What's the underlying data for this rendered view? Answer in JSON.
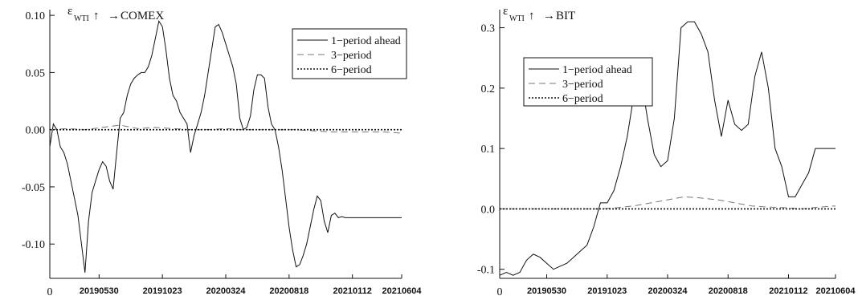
{
  "chart_data": [
    {
      "type": "line",
      "title_main": "ε",
      "title_sub": "WTI",
      "title_target": "COMEX",
      "ylim": [
        -0.13,
        0.105
      ],
      "yticks": [
        -0.1,
        -0.05,
        0.0,
        0.05,
        0.1
      ],
      "ytick_labels": [
        "-0.10",
        "-0.05",
        "0.00",
        "0.05",
        "0.10"
      ],
      "xlim": [
        0,
        100
      ],
      "x_zero_label": "0",
      "xticks": [
        {
          "x": 14,
          "label": "20190530"
        },
        {
          "x": 32,
          "label": "20191023"
        },
        {
          "x": 50,
          "label": "20200324"
        },
        {
          "x": 68,
          "label": "20200818"
        },
        {
          "x": 86,
          "label": "20210112"
        },
        {
          "x": 100,
          "label": "20210604"
        }
      ],
      "legend": [
        "1−period ahead",
        "3−period",
        "6−period"
      ],
      "series": [
        {
          "name": "1−period ahead",
          "style": "solid",
          "x": [
            0,
            1,
            2,
            3,
            4,
            5,
            6,
            7,
            8,
            9,
            10,
            11,
            12,
            13,
            14,
            15,
            16,
            17,
            18,
            19,
            20,
            21,
            22,
            23,
            24,
            25,
            26,
            27,
            28,
            29,
            30,
            31,
            32,
            33,
            34,
            35,
            36,
            37,
            38,
            39,
            40,
            41,
            42,
            43,
            44,
            45,
            46,
            47,
            48,
            49,
            50,
            51,
            52,
            53,
            54,
            55,
            56,
            57,
            58,
            59,
            60,
            61,
            62,
            63,
            64,
            65,
            66,
            67,
            68,
            69,
            70,
            71,
            72,
            73,
            74,
            75,
            76,
            77,
            78,
            79,
            80,
            81,
            82,
            83,
            84,
            85,
            86,
            87,
            88,
            89,
            90,
            91,
            92,
            93,
            94,
            95,
            96,
            97,
            98,
            99,
            100
          ],
          "y": [
            -0.015,
            0.005,
            0.0,
            -0.015,
            -0.02,
            -0.03,
            -0.045,
            -0.06,
            -0.075,
            -0.1,
            -0.125,
            -0.08,
            -0.055,
            -0.045,
            -0.035,
            -0.028,
            -0.032,
            -0.045,
            -0.052,
            -0.02,
            0.01,
            0.015,
            0.03,
            0.04,
            0.045,
            0.048,
            0.05,
            0.05,
            0.055,
            0.065,
            0.08,
            0.095,
            0.09,
            0.07,
            0.045,
            0.03,
            0.025,
            0.015,
            0.01,
            0.005,
            -0.02,
            -0.005,
            0.005,
            0.015,
            0.03,
            0.05,
            0.07,
            0.09,
            0.092,
            0.085,
            0.075,
            0.065,
            0.055,
            0.04,
            0.01,
            0.0,
            0.002,
            0.012,
            0.035,
            0.048,
            0.048,
            0.045,
            0.02,
            0.005,
            0.0,
            -0.015,
            -0.035,
            -0.06,
            -0.085,
            -0.105,
            -0.12,
            -0.118,
            -0.11,
            -0.1,
            -0.085,
            -0.07,
            -0.058,
            -0.062,
            -0.08,
            -0.09,
            -0.075,
            -0.073,
            -0.077,
            -0.076,
            -0.077,
            -0.077,
            -0.077,
            -0.077,
            -0.077,
            -0.077,
            -0.077,
            -0.077,
            -0.077,
            -0.077,
            -0.077,
            -0.077,
            -0.077,
            -0.077,
            -0.077,
            -0.077,
            -0.077
          ]
        },
        {
          "name": "3−period",
          "style": "dash",
          "x": [
            0,
            5,
            10,
            15,
            20,
            25,
            30,
            35,
            40,
            45,
            50,
            55,
            60,
            65,
            70,
            75,
            80,
            85,
            90,
            95,
            100
          ],
          "y": [
            0.0,
            0.001,
            0.0,
            0.002,
            0.004,
            0.001,
            0.002,
            0.001,
            0.0,
            0.0,
            0.001,
            0.0,
            0.0,
            0.0,
            0.0,
            -0.001,
            -0.002,
            -0.002,
            -0.002,
            -0.002,
            -0.003
          ]
        },
        {
          "name": "6−period",
          "style": "dot",
          "x": [
            0,
            100
          ],
          "y": [
            0.0,
            0.0
          ]
        }
      ]
    },
    {
      "type": "line",
      "title_main": "ε",
      "title_sub": "WTI",
      "title_target": "BIT",
      "ylim": [
        -0.115,
        0.33
      ],
      "yticks": [
        -0.1,
        0.0,
        0.1,
        0.2,
        0.3
      ],
      "ytick_labels": [
        "-0.1",
        "0.0",
        "0.1",
        "0.2",
        "0.3"
      ],
      "xlim": [
        0,
        100
      ],
      "x_zero_label": "0",
      "xticks": [
        {
          "x": 14,
          "label": "20190530"
        },
        {
          "x": 32,
          "label": "20191023"
        },
        {
          "x": 50,
          "label": "20200324"
        },
        {
          "x": 68,
          "label": "20200818"
        },
        {
          "x": 86,
          "label": "20210112"
        },
        {
          "x": 100,
          "label": "20210604"
        }
      ],
      "legend": [
        "1−period ahead",
        "3−period",
        "6−period"
      ],
      "series": [
        {
          "name": "1−period ahead",
          "style": "solid",
          "x": [
            0,
            2,
            4,
            6,
            8,
            10,
            12,
            14,
            16,
            18,
            20,
            22,
            24,
            26,
            28,
            30,
            32,
            34,
            36,
            38,
            40,
            42,
            44,
            46,
            48,
            50,
            52,
            54,
            56,
            58,
            60,
            62,
            64,
            66,
            68,
            70,
            72,
            74,
            76,
            78,
            80,
            82,
            84,
            86,
            88,
            90,
            92,
            94,
            96,
            98,
            100
          ],
          "y": [
            -0.11,
            -0.105,
            -0.11,
            -0.105,
            -0.085,
            -0.075,
            -0.08,
            -0.09,
            -0.1,
            -0.095,
            -0.09,
            -0.08,
            -0.07,
            -0.06,
            -0.03,
            0.01,
            0.01,
            0.03,
            0.07,
            0.12,
            0.19,
            0.22,
            0.15,
            0.09,
            0.07,
            0.08,
            0.15,
            0.3,
            0.31,
            0.31,
            0.29,
            0.26,
            0.18,
            0.12,
            0.18,
            0.14,
            0.13,
            0.14,
            0.22,
            0.26,
            0.2,
            0.1,
            0.07,
            0.02,
            0.02,
            0.04,
            0.06,
            0.1,
            0.1,
            0.1,
            0.1
          ]
        },
        {
          "name": "3−period",
          "style": "dash",
          "x": [
            0,
            10,
            20,
            30,
            35,
            40,
            45,
            50,
            55,
            60,
            65,
            70,
            75,
            80,
            85,
            90,
            95,
            100
          ],
          "y": [
            0.0,
            0.0,
            0.0,
            0.0,
            0.002,
            0.005,
            0.01,
            0.015,
            0.02,
            0.018,
            0.015,
            0.01,
            0.005,
            0.003,
            0.002,
            0.0,
            0.003,
            0.005
          ]
        },
        {
          "name": "6−period",
          "style": "dot",
          "x": [
            0,
            100
          ],
          "y": [
            0.0,
            0.0
          ]
        }
      ]
    }
  ]
}
